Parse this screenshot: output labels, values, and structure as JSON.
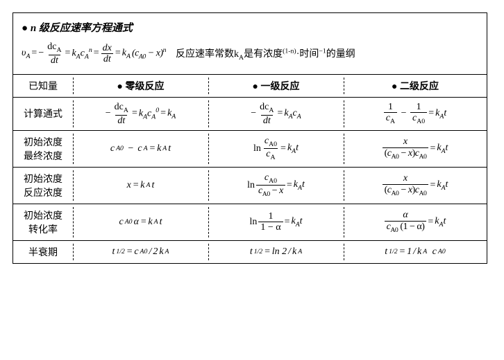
{
  "top": {
    "title_bullet": "●",
    "title_text": " n 级反应速率方程通式",
    "eq_va": "υ",
    "eq_sA": "A",
    "minus": "−",
    "eq": "=",
    "dca": "dc",
    "dt": "dt",
    "k": "k",
    "c": "c",
    "n": "n",
    "dx": "dx",
    "lp": "(",
    "rp": ")",
    "a0": "A0",
    "mx": " − x",
    "desc": "反应速率常数k",
    "descA": "A",
    "desc2": "是有浓度",
    "exp1": "(1-n)",
    "dot": "·时间",
    "expm1": "−1",
    "desc3": "的量纲"
  },
  "headers": {
    "known": "已知量",
    "b": "● ",
    "zero": "零级反应",
    "first": "一级反应",
    "second": "二级反应"
  },
  "rows": {
    "r1": "计算通式",
    "r2a": "初始浓度",
    "r2b": "最终浓度",
    "r3a": "初始浓度",
    "r3b": "反应浓度",
    "r4a": "初始浓度",
    "r4b": "转化率",
    "r5": "半衰期"
  },
  "sym": {
    "minus": "−",
    "eq": " = ",
    "k": "k",
    "A": "A",
    "c": "c",
    "A0": "A0",
    "zero": "0",
    "t": "t",
    "x": "x",
    "ln": "ln",
    "one": "1",
    "alpha": "α",
    "half": "1/2",
    "slash": "/",
    "two": "2",
    "ln2": "ln 2",
    "dc": "dc",
    "dt": "dt",
    "lp": "(",
    "rp": ")",
    "om": "1 − α"
  }
}
